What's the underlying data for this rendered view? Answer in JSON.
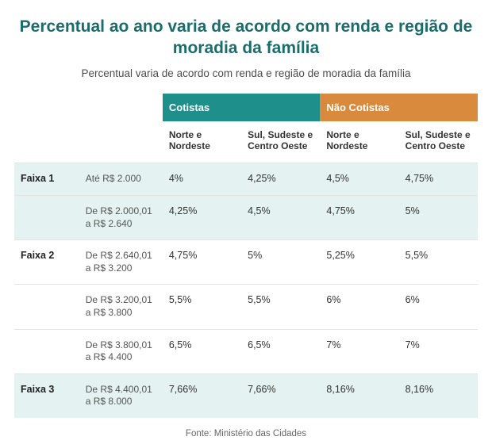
{
  "colors": {
    "title": "#1b6d6b",
    "cotistas_bg": "#1f8f8c",
    "nao_cotistas_bg": "#d98a3c",
    "row_highlight": "#e4f2f1",
    "row_plain": "#ffffff",
    "border": "#e4e4e4",
    "text": "#333333",
    "subtext": "#555555",
    "source": "#666666"
  },
  "title": "Percentual ao ano varia de acordo com renda e região de moradia da família",
  "subtitle": "Percentual varia de acordo com renda e região de moradia da família",
  "group_headers": [
    "Cotistas",
    "Não Cotistas"
  ],
  "sub_headers": [
    "Norte e Nordeste",
    "Sul, Sudeste e Centro Oeste",
    "Norte e Nordeste",
    "Sul, Sudeste e Centro Oeste"
  ],
  "rows": [
    {
      "faixa": "Faixa 1",
      "renda": "Até R$ 2.000",
      "vals": [
        "4%",
        "4,25%",
        "4,5%",
        "4,75%"
      ],
      "highlight": true
    },
    {
      "faixa": "",
      "renda": "De R$ 2.000,01 a R$ 2.640",
      "vals": [
        "4,25%",
        "4,5%",
        "4,75%",
        "5%"
      ],
      "highlight": true
    },
    {
      "faixa": "Faixa 2",
      "renda": "De R$ 2.640,01 a R$ 3.200",
      "vals": [
        "4,75%",
        "5%",
        "5,25%",
        "5,5%"
      ],
      "highlight": false
    },
    {
      "faixa": "",
      "renda": "De R$ 3.200,01 a R$ 3.800",
      "vals": [
        "5,5%",
        "5,5%",
        "6%",
        "6%"
      ],
      "highlight": false
    },
    {
      "faixa": "",
      "renda": "De R$ 3.800,01 a R$ 4.400",
      "vals": [
        "6,5%",
        "6,5%",
        "7%",
        "7%"
      ],
      "highlight": false
    },
    {
      "faixa": "Faixa 3",
      "renda": "De R$ 4.400,01 a R$ 8.000",
      "vals": [
        "7,66%",
        "7,66%",
        "8,16%",
        "8,16%"
      ],
      "highlight": true
    }
  ],
  "source": "Fonte: Ministério das Cidades"
}
